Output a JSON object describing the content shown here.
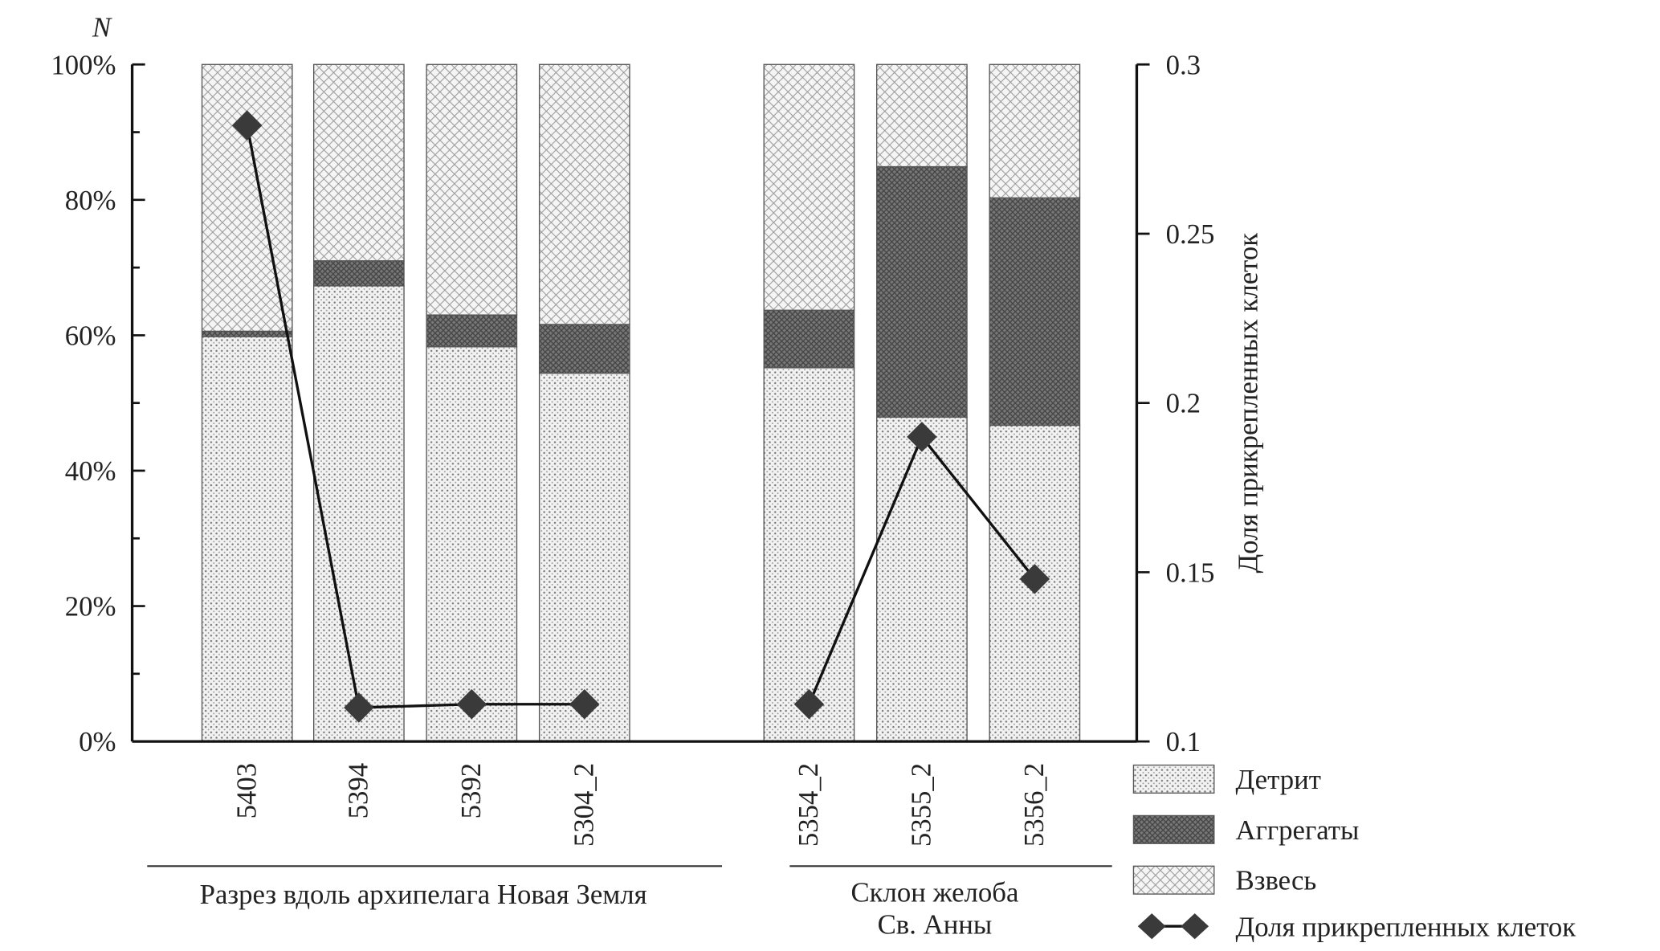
{
  "chart_data": {
    "type": "bar",
    "stacked": true,
    "categories": [
      "5403",
      "5394",
      "5392",
      "5304_2",
      "5354_2",
      "5355_2",
      "5356_2"
    ],
    "groups": [
      {
        "label": "Разрез вдоль архипелага Новая Земля",
        "categories": [
          "5403",
          "5394",
          "5392",
          "5304_2"
        ]
      },
      {
        "label_lines": [
          "Склон желоба",
          "Св. Анны"
        ],
        "categories": [
          "5354_2",
          "5355_2",
          "5356_2"
        ]
      }
    ],
    "series": [
      {
        "name": "Детрит",
        "axis": "left",
        "values": [
          59.8,
          67.3,
          58.3,
          54.4,
          55.2,
          47.9,
          46.7
        ]
      },
      {
        "name": "Аггрегаты",
        "axis": "left",
        "values": [
          0.8,
          3.7,
          4.7,
          7.2,
          8.5,
          37.0,
          33.6
        ]
      },
      {
        "name": "Взвесь",
        "axis": "left",
        "values": [
          39.4,
          29.0,
          37.0,
          38.4,
          36.3,
          15.1,
          19.7
        ]
      },
      {
        "name": "Доля прикрепленных клеток",
        "axis": "right",
        "type": "line",
        "values": [
          0.282,
          0.11,
          0.111,
          0.111,
          0.111,
          0.19,
          0.148
        ]
      }
    ],
    "left_axis": {
      "label": "N",
      "ylim": [
        0,
        100
      ],
      "ticks": [
        "0%",
        "20%",
        "40%",
        "60%",
        "80%",
        "100%"
      ]
    },
    "right_axis": {
      "label": "Доля прикрепленных клеток",
      "ylim": [
        0.1,
        0.3
      ],
      "ticks": [
        "0.1",
        "0.15",
        "0.2",
        "0.25",
        "0.3"
      ]
    },
    "legend": {
      "placement": "bottom-right",
      "entries": [
        "Детрит",
        "Аггрегаты",
        "Взвесь",
        "Доля прикрепленных клеток"
      ]
    },
    "grid": false
  }
}
